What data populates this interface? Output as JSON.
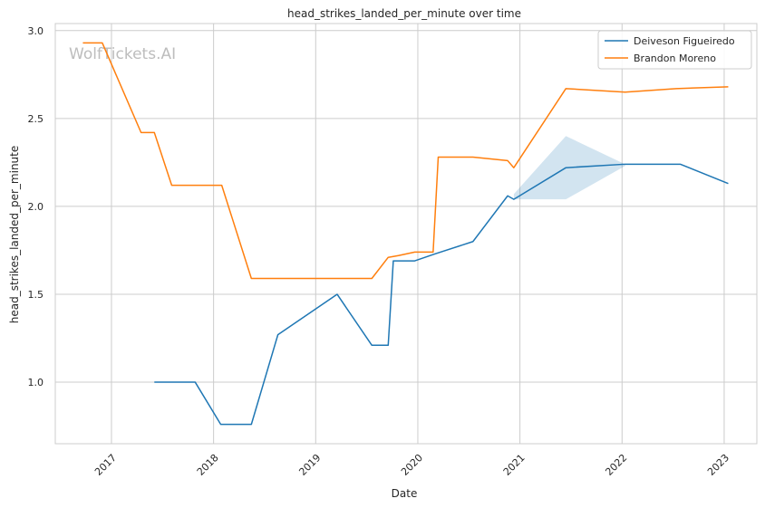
{
  "chart_data": {
    "type": "line",
    "title": "head_strikes_landed_per_minute over time",
    "xlabel": "Date",
    "ylabel": "head_strikes_landed_per_minute",
    "watermark": "WolfTickets.AI",
    "xlim": [
      2016.45,
      2023.32
    ],
    "ylim": [
      0.65,
      3.04
    ],
    "x_ticks": [
      {
        "label": "2017",
        "value": 2017.0
      },
      {
        "label": "2018",
        "value": 2018.0
      },
      {
        "label": "2019",
        "value": 2019.0
      },
      {
        "label": "2020",
        "value": 2020.0
      },
      {
        "label": "2021",
        "value": 2021.0
      },
      {
        "label": "2022",
        "value": 2022.0
      },
      {
        "label": "2023",
        "value": 2023.0
      }
    ],
    "y_ticks": [
      1.0,
      1.5,
      2.0,
      2.5,
      3.0
    ],
    "y_tick_labels": [
      "1.0",
      "1.5",
      "2.0",
      "2.5",
      "3.0"
    ],
    "grid": true,
    "legend_position": "top-right",
    "series": [
      {
        "name": "Deiveson Figueiredo",
        "color": "#1f77b4",
        "x": [
          2017.42,
          2017.82,
          2018.07,
          2018.37,
          2018.63,
          2019.21,
          2019.55,
          2019.71,
          2019.76,
          2019.97,
          2020.17,
          2020.54,
          2020.88,
          2020.94,
          2021.45,
          2022.03,
          2022.57,
          2023.04
        ],
        "y": [
          1.0,
          1.0,
          0.76,
          0.76,
          1.27,
          1.5,
          1.21,
          1.21,
          1.69,
          1.69,
          1.73,
          1.8,
          2.06,
          2.04,
          2.22,
          2.24,
          2.24,
          2.13
        ],
        "band": {
          "x": [
            2020.94,
            2021.45,
            2022.03
          ],
          "lower": [
            2.04,
            2.04,
            2.23
          ],
          "upper": [
            2.07,
            2.4,
            2.24
          ]
        }
      },
      {
        "name": "Brandon Moreno",
        "color": "#ff7f0e",
        "x": [
          2016.72,
          2016.91,
          2017.29,
          2017.42,
          2017.59,
          2018.08,
          2018.37,
          2019.55,
          2019.71,
          2019.81,
          2019.97,
          2020.15,
          2020.2,
          2020.54,
          2020.88,
          2020.94,
          2021.45,
          2022.03,
          2022.53,
          2023.04
        ],
        "y": [
          2.93,
          2.93,
          2.42,
          2.42,
          2.12,
          2.12,
          1.59,
          1.59,
          1.71,
          1.72,
          1.74,
          1.74,
          2.28,
          2.28,
          2.26,
          2.22,
          2.67,
          2.65,
          2.67,
          2.68
        ]
      }
    ]
  }
}
